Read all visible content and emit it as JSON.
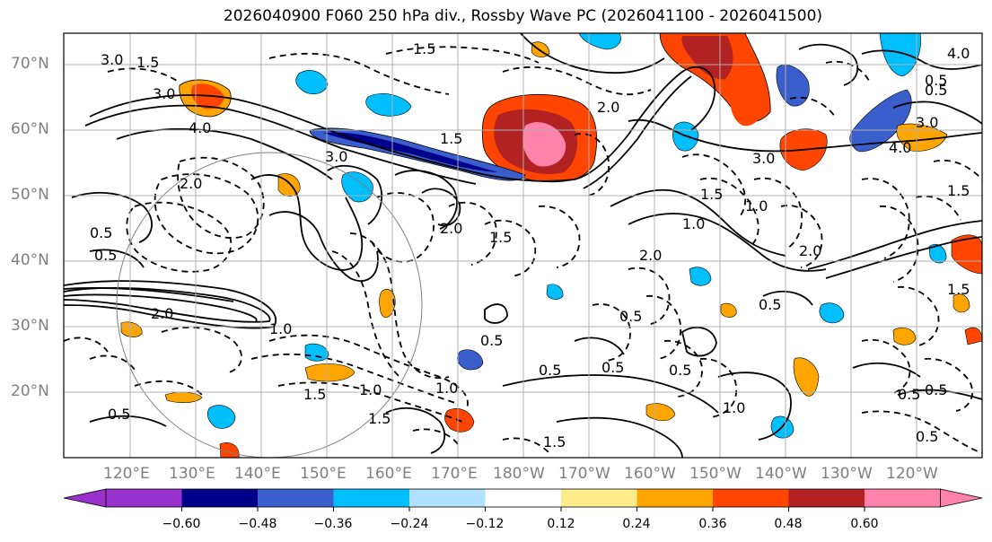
{
  "title": "2026040900 F060 250 hPa div., Rossby Wave PC (2026041100 - 2026041500)",
  "map": {
    "lat_labels": [
      "70°N",
      "60°N",
      "50°N",
      "40°N",
      "30°N",
      "20°N"
    ],
    "lon_labels": [
      "120°E",
      "130°E",
      "140°E",
      "150°E",
      "160°E",
      "170°E",
      "180°W",
      "170°W",
      "160°W",
      "150°W",
      "140°W",
      "130°W",
      "120°W"
    ],
    "contour_labels": [
      "3.0",
      "1.5",
      "3.0",
      "4.0",
      "1.5",
      "3.0",
      "2.0",
      "0.5",
      "1.0",
      "2.0",
      "2.0",
      "1.5",
      "0.5",
      "0.5",
      "0.5",
      "1.0",
      "1.5",
      "1.0",
      "0.5",
      "0.5",
      "1.5",
      "2.0",
      "1.5",
      "1.0",
      "0.5",
      "0.5",
      "0.5",
      "4.0",
      "1.5",
      "1.5",
      "0.5",
      "3.0",
      "3.0",
      "2.0",
      "1.0",
      "0.5",
      "1.5",
      "1.0",
      "0.5",
      "4.0",
      "2.0",
      "1.5",
      "0.5",
      "0.5"
    ]
  },
  "colorbar": {
    "labels": [
      "−0.60",
      "−0.48",
      "−0.36",
      "−0.24",
      "−0.12",
      "0.12",
      "0.24",
      "0.36",
      "0.48",
      "0.60"
    ],
    "colors": [
      "#9932cc",
      "#00008b",
      "#3a5fcd",
      "#00bfff",
      "#b0e2ff",
      "#ffffff",
      "#ffec8b",
      "#ffa500",
      "#ff4500",
      "#b22222",
      "#ff82ab"
    ]
  }
}
